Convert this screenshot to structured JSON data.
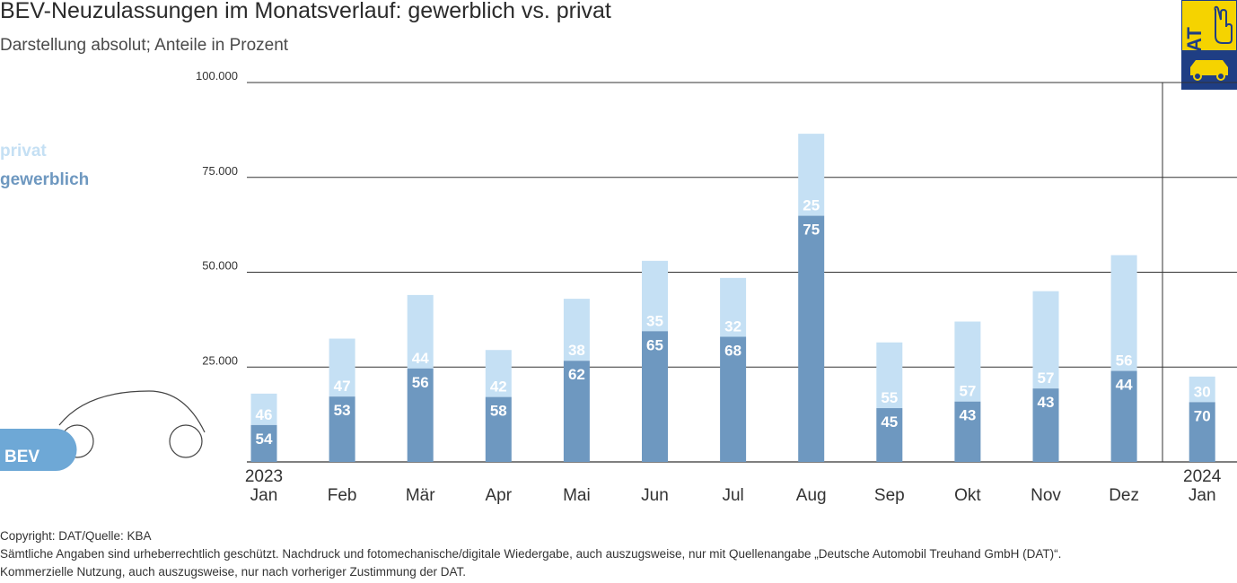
{
  "title": "BEV-Neuzulassungen im Monatsverlauf: gewerblich vs. privat",
  "subtitle": "Darstellung absolut; Anteile in Prozent",
  "logo_text": "DAT",
  "legend": {
    "privat": "privat",
    "gewerblich": "gewerblich"
  },
  "bev_label": "BEV",
  "colors": {
    "privat": "#c5e0f4",
    "gewerblich": "#6e98c0",
    "logo_yellow": "#f5d300",
    "logo_blue": "#1f3e84",
    "bev_badge": "#6ea8d6"
  },
  "chart_data": {
    "type": "bar",
    "stacked": true,
    "categories": [
      "Jan",
      "Feb",
      "Mär",
      "Apr",
      "Mai",
      "Jun",
      "Jul",
      "Aug",
      "Sep",
      "Okt",
      "Nov",
      "Dez",
      "Jan"
    ],
    "year_labels": [
      "2023",
      "",
      "",
      "",
      "",
      "",
      "",
      "",
      "",
      "",
      "",
      "",
      "2024"
    ],
    "totals": [
      18000,
      32500,
      44000,
      29500,
      43000,
      53000,
      48500,
      86500,
      31500,
      37000,
      45000,
      54500,
      22500
    ],
    "series": [
      {
        "name": "gewerblich",
        "percent": [
          54,
          53,
          56,
          58,
          62,
          65,
          68,
          75,
          45,
          43,
          43,
          44,
          70
        ]
      },
      {
        "name": "privat",
        "percent": [
          46,
          47,
          44,
          42,
          38,
          35,
          32,
          25,
          55,
          57,
          57,
          56,
          30
        ]
      }
    ],
    "ylim": [
      0,
      100000
    ],
    "yticks": [
      25000,
      50000,
      75000,
      100000
    ],
    "ytick_labels": [
      "25.000",
      "50.000",
      "75.000",
      "100.000"
    ],
    "grid": true,
    "legend_position": "left"
  },
  "footer": {
    "copyright": "Copyright: DAT/Quelle: KBA",
    "line2": "Sämtliche Angaben sind urheberrechtlich geschützt. Nachdruck und fotomechanische/digitale Wiedergabe, auch auszugsweise, nur mit Quellenangabe „Deutsche Automobil Treuhand GmbH (DAT)“.",
    "line3": "Kommerzielle Nutzung, auch auszugsweise, nur nach vorheriger Zustimmung der DAT."
  }
}
